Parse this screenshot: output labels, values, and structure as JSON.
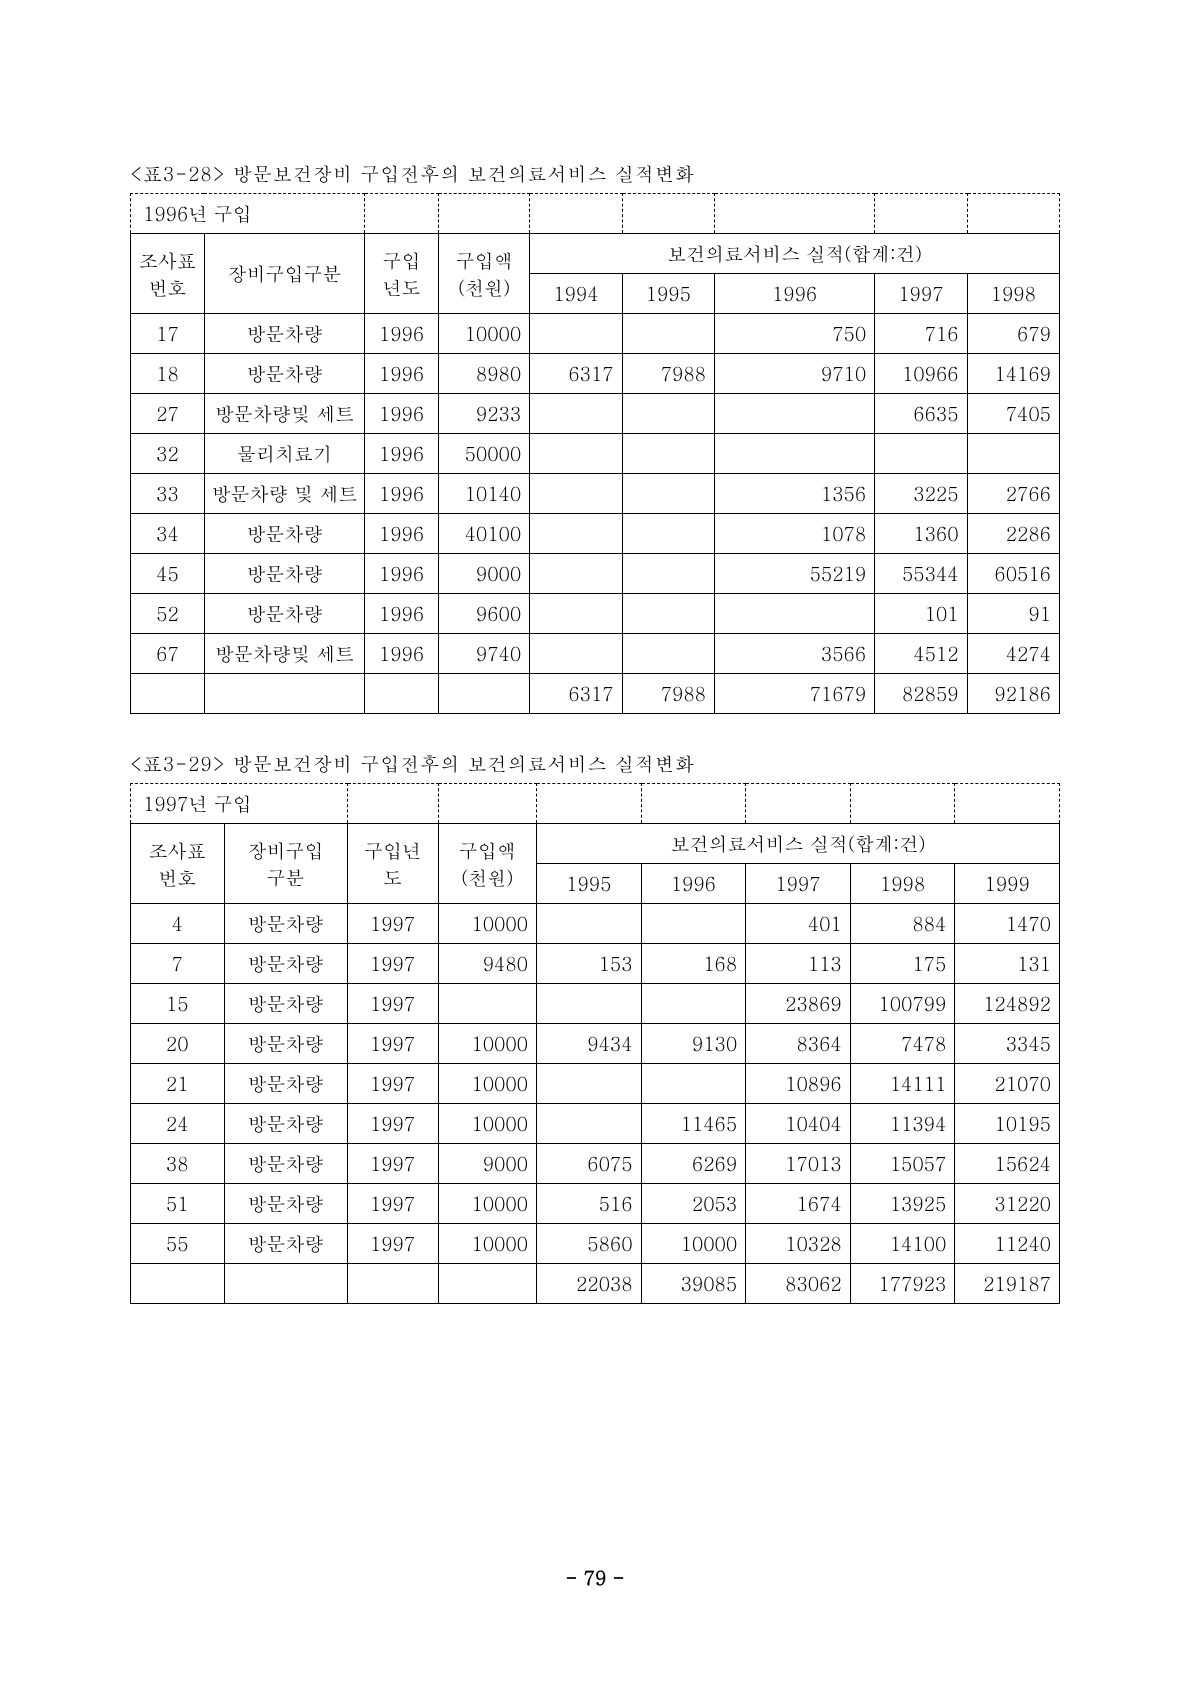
{
  "table1": {
    "caption": "<표3-28> 방문보건장비 구입전후의 보건의료서비스 실적변화",
    "top_label": "1996년 구입",
    "headers": {
      "col1": "조사표\n번호",
      "col2": "장비구입구분",
      "col3": "구입\n년도",
      "col4": "구입액\n(천원)",
      "group": "보건의료서비스 실적(합계:건)",
      "years": [
        "1994",
        "1995",
        "1996",
        "1997",
        "1998"
      ]
    },
    "rows": [
      {
        "c1": "17",
        "c2": "방문차량",
        "c3": "1996",
        "c4": "10000",
        "y": [
          "",
          "",
          "750",
          "716",
          "679"
        ]
      },
      {
        "c1": "18",
        "c2": "방문차량",
        "c3": "1996",
        "c4": "8980",
        "y": [
          "6317",
          "7988",
          "9710",
          "10966",
          "14169"
        ]
      },
      {
        "c1": "27",
        "c2": "방문차량및 세트",
        "c3": "1996",
        "c4": "9233",
        "y": [
          "",
          "",
          "",
          "6635",
          "7405"
        ]
      },
      {
        "c1": "32",
        "c2": "물리치료기",
        "c3": "1996",
        "c4": "50000",
        "y": [
          "",
          "",
          "",
          "",
          ""
        ]
      },
      {
        "c1": "33",
        "c2": "방문차량 및 세트",
        "c3": "1996",
        "c4": "10140",
        "y": [
          "",
          "",
          "1356",
          "3225",
          "2766"
        ]
      },
      {
        "c1": "34",
        "c2": "방문차량",
        "c3": "1996",
        "c4": "40100",
        "y": [
          "",
          "",
          "1078",
          "1360",
          "2286"
        ]
      },
      {
        "c1": "45",
        "c2": "방문차량",
        "c3": "1996",
        "c4": "9000",
        "y": [
          "",
          "",
          "55219",
          "55344",
          "60516"
        ]
      },
      {
        "c1": "52",
        "c2": "방문차량",
        "c3": "1996",
        "c4": "9600",
        "y": [
          "",
          "",
          "",
          "101",
          "91"
        ]
      },
      {
        "c1": "67",
        "c2": "방문차량및 세트",
        "c3": "1996",
        "c4": "9740",
        "y": [
          "",
          "",
          "3566",
          "4512",
          "4274"
        ]
      }
    ],
    "totals": {
      "c1": "",
      "c2": "",
      "c3": "",
      "c4": "",
      "y": [
        "6317",
        "7988",
        "71679",
        "82859",
        "92186"
      ]
    }
  },
  "table2": {
    "caption": "<표3-29> 방문보건장비 구입전후의 보건의료서비스 실적변화",
    "top_label": "1997년 구입",
    "headers": {
      "col1": "조사표\n번호",
      "col2": "장비구입\n구분",
      "col3": "구입년\n도",
      "col4": "구입액\n(천원)",
      "group": "보건의료서비스 실적(합계:건)",
      "years": [
        "1995",
        "1996",
        "1997",
        "1998",
        "1999"
      ]
    },
    "rows": [
      {
        "c1": "4",
        "c2": "방문차량",
        "c3": "1997",
        "c4": "10000",
        "y": [
          "",
          "",
          "401",
          "884",
          "1470"
        ]
      },
      {
        "c1": "7",
        "c2": "방문차량",
        "c3": "1997",
        "c4": "9480",
        "y": [
          "153",
          "168",
          "113",
          "175",
          "131"
        ]
      },
      {
        "c1": "15",
        "c2": "방문차량",
        "c3": "1997",
        "c4": "",
        "y": [
          "",
          "",
          "23869",
          "100799",
          "124892"
        ]
      },
      {
        "c1": "20",
        "c2": "방문차량",
        "c3": "1997",
        "c4": "10000",
        "y": [
          "9434",
          "9130",
          "8364",
          "7478",
          "3345"
        ]
      },
      {
        "c1": "21",
        "c2": "방문차량",
        "c3": "1997",
        "c4": "10000",
        "y": [
          "",
          "",
          "10896",
          "14111",
          "21070"
        ]
      },
      {
        "c1": "24",
        "c2": "방문차량",
        "c3": "1997",
        "c4": "10000",
        "y": [
          "",
          "11465",
          "10404",
          "11394",
          "10195"
        ]
      },
      {
        "c1": "38",
        "c2": "방문차량",
        "c3": "1997",
        "c4": "9000",
        "y": [
          "6075",
          "6269",
          "17013",
          "15057",
          "15624"
        ]
      },
      {
        "c1": "51",
        "c2": "방문차량",
        "c3": "1997",
        "c4": "10000",
        "y": [
          "516",
          "2053",
          "1674",
          "13925",
          "31220"
        ]
      },
      {
        "c1": "55",
        "c2": "방문차량",
        "c3": "1997",
        "c4": "10000",
        "y": [
          "5860",
          "10000",
          "10328",
          "14100",
          "11240"
        ]
      }
    ],
    "totals": {
      "c1": "",
      "c2": "",
      "c3": "",
      "c4": "",
      "y": [
        "22038",
        "39085",
        "83062",
        "177923",
        "219187"
      ]
    }
  },
  "page_number": "- 79 -"
}
